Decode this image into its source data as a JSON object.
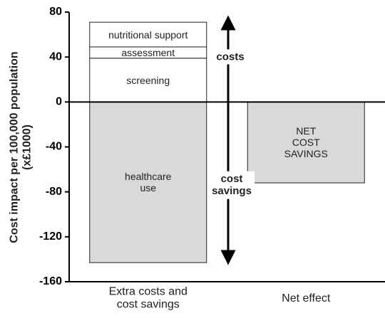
{
  "chart_data": {
    "type": "bar",
    "stacked": true,
    "ylabel": "Cost impact per 100,000 population\n(x£1000)",
    "categories": [
      "Extra costs and\ncost savings",
      "Net effect"
    ],
    "series": [
      {
        "name": "screening",
        "color": "#ffffff",
        "values": [
          39,
          null
        ]
      },
      {
        "name": "assessment",
        "color": "#ffffff",
        "values": [
          10,
          null
        ]
      },
      {
        "name": "nutritional support",
        "color": "#ffffff",
        "values": [
          22,
          null
        ]
      },
      {
        "name": "healthcare\nuse",
        "color": "#d9d9d9",
        "values": [
          -143,
          null
        ]
      },
      {
        "name": "NET\nCOST\nSAVINGS",
        "color": "#d9d9d9",
        "values": [
          null,
          -72
        ]
      }
    ],
    "ylim": [
      -160,
      80
    ],
    "yticks": [
      80,
      40,
      0,
      -40,
      -80,
      -120,
      -160
    ],
    "annotations": [
      "costs",
      "cost\nsavings"
    ]
  }
}
